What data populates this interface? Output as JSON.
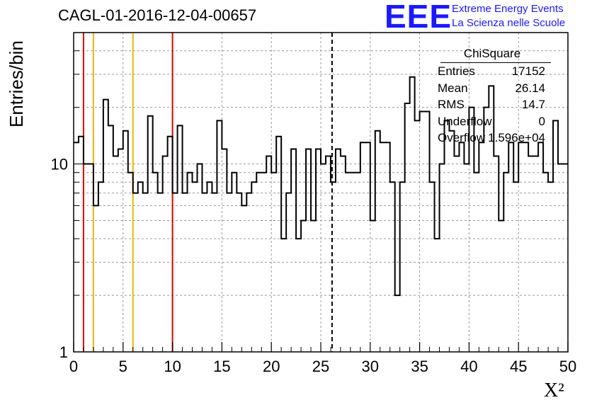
{
  "title": "CAGL-01-2016-12-04-00657",
  "logo": {
    "mark": "EEE",
    "line1": "Extreme Energy Events",
    "line2": "La Scienza nelle Scuole"
  },
  "stats": {
    "title": "ChiSquare",
    "rows": [
      {
        "key": "Entries",
        "value": "17152"
      },
      {
        "key": "Mean",
        "value": "26.14"
      },
      {
        "key": "RMS",
        "value": "14.7"
      },
      {
        "key": "Underflow",
        "value": "0"
      },
      {
        "key": "Overflow",
        "value": "1.596e+04"
      }
    ]
  },
  "colors": {
    "red": "#e00000",
    "orange": "#f2b705",
    "line": "#000000",
    "grid": "#999999"
  },
  "chart_data": {
    "type": "line",
    "title": "CAGL-01-2016-12-04-00657",
    "xlabel": "X²",
    "ylabel": "Entries/bin",
    "xlim": [
      0,
      50
    ],
    "ylim": [
      1,
      50
    ],
    "yscale": "log",
    "grid": true,
    "bin_width": 0.5,
    "x_ticks": [
      0,
      5,
      10,
      15,
      20,
      25,
      30,
      35,
      40,
      45,
      50
    ],
    "y_ticks": [
      1,
      10
    ],
    "values": [
      13,
      14,
      10,
      10,
      6,
      8,
      22,
      16,
      11,
      12,
      15,
      9,
      7,
      8,
      7,
      18,
      9,
      7,
      11,
      14,
      7,
      16,
      7,
      9,
      8,
      10,
      7,
      8,
      7,
      17,
      12,
      7,
      9,
      7,
      6,
      7,
      8,
      9,
      9,
      11,
      9,
      14,
      4,
      7,
      12,
      4,
      5,
      12,
      5,
      12,
      10,
      11,
      8,
      12,
      11,
      9,
      9,
      9,
      13,
      13,
      5,
      15,
      13,
      13,
      8,
      2,
      8,
      21,
      29,
      17,
      19,
      19,
      8,
      4,
      10,
      17,
      15,
      11,
      13,
      10,
      20,
      9,
      13,
      20,
      26,
      11,
      5,
      9,
      13,
      8,
      13,
      13,
      11,
      11,
      13,
      9,
      8,
      17,
      10
    ],
    "vlines": [
      {
        "x": 1,
        "color": "red",
        "style": "solid"
      },
      {
        "x": 2,
        "color": "orange",
        "style": "solid"
      },
      {
        "x": 6,
        "color": "orange",
        "style": "solid"
      },
      {
        "x": 10,
        "color": "red",
        "style": "solid"
      },
      {
        "x": 26.14,
        "color": "black",
        "style": "dashed"
      }
    ]
  }
}
